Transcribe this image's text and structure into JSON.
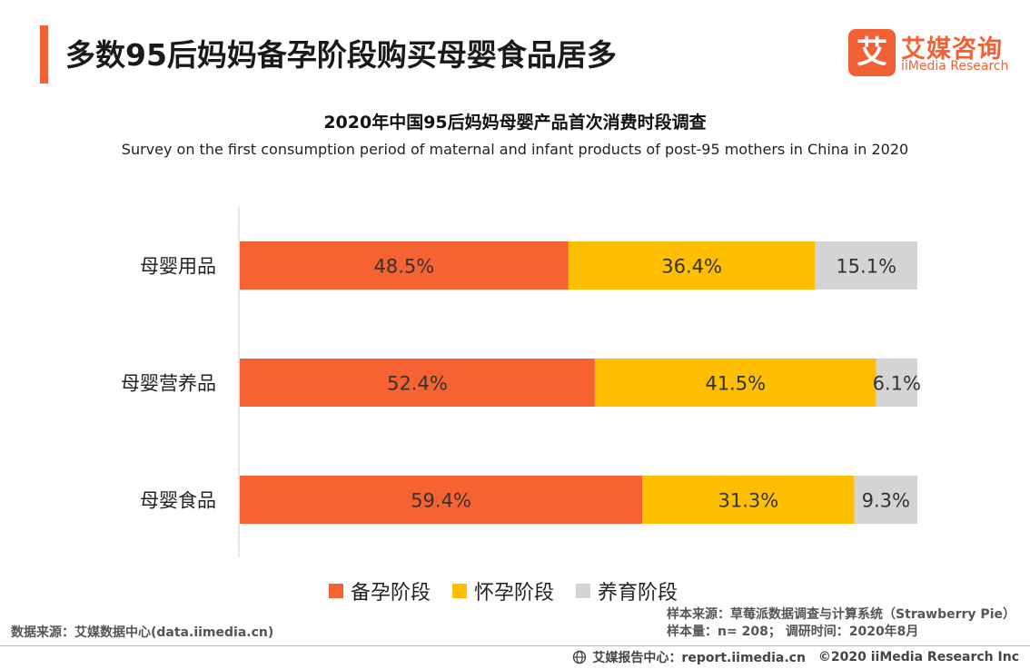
{
  "header": {
    "title": "多数95后妈妈备孕阶段购买母婴食品居多"
  },
  "logo": {
    "mark": "艾",
    "name_cn": "艾媒咨询",
    "name_en": "iiMedia Research"
  },
  "colors": {
    "accent": "#f26135",
    "stage1": "#f76233",
    "stage2": "#fdbf00",
    "stage3": "#d4d4d4"
  },
  "chart_data": {
    "type": "bar",
    "orientation": "horizontal",
    "stacked": true,
    "percent_stacked": true,
    "title": "2020年中国95后妈妈母婴产品首次消费时段调查",
    "subtitle": "Survey on the first consumption period of maternal and infant products of post-95 mothers in China in 2020",
    "categories": [
      "母婴用品",
      "母婴营养品",
      "母婴食品"
    ],
    "series": [
      {
        "name": "备孕阶段",
        "values": [
          48.5,
          52.4,
          59.4
        ],
        "labels": [
          "48.5%",
          "52.4%",
          "59.4%"
        ]
      },
      {
        "name": "怀孕阶段",
        "values": [
          36.4,
          41.5,
          31.3
        ],
        "labels": [
          "36.4%",
          "41.5%",
          "31.3%"
        ]
      },
      {
        "name": "养育阶段",
        "values": [
          15.1,
          6.1,
          9.3
        ],
        "labels": [
          "15.1%",
          "6.1%",
          "9.3%"
        ]
      }
    ],
    "xlim": [
      0,
      100
    ],
    "grid": false,
    "legend": "bottom"
  },
  "source": {
    "left": "数据来源：艾媒数据中心(data.iimedia.cn)",
    "sample_source": "样本来源：草莓派数据调查与计算系统（Strawberry Pie）",
    "sample_size": "样本量：n= 208；  调研时间：2020年8月"
  },
  "footer": {
    "center": "艾媒报告中心：report.iimedia.cn",
    "copyright": "©2020  iiMedia Research  Inc"
  }
}
